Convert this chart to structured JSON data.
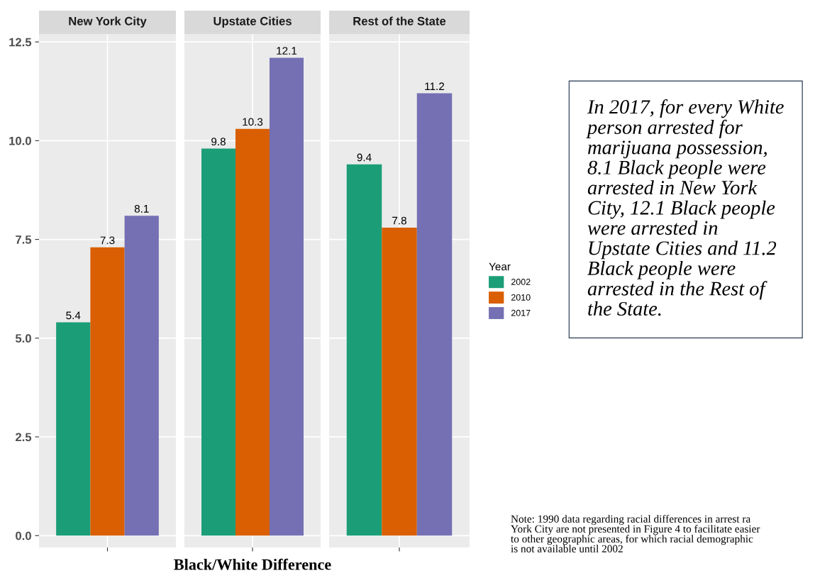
{
  "chart_data": {
    "type": "bar",
    "categories": [
      "New York City",
      "Upstate Cities",
      "Rest of the State"
    ],
    "xlabel": "Black/White Difference",
    "ylim": [
      -0.3,
      12.7
    ],
    "yticks": [
      {
        "value": 0,
        "label": "0.0"
      },
      {
        "value": 2.5,
        "label": "2.5"
      },
      {
        "value": 5,
        "label": "5.0"
      },
      {
        "value": 7.5,
        "label": "7.5"
      },
      {
        "value": 10,
        "label": "10.0"
      },
      {
        "value": 12.5,
        "label": "12.5"
      }
    ],
    "grid": true,
    "data_labels": true,
    "legend": "right",
    "legend_title": "Year",
    "series": [
      {
        "name": "2002",
        "color": "#1b9e77",
        "values": [
          5.4,
          9.8,
          9.4
        ]
      },
      {
        "name": "2010",
        "color": "#d95f02",
        "values": [
          7.3,
          10.3,
          7.8
        ]
      },
      {
        "name": "2017",
        "color": "#7570b3",
        "values": [
          8.1,
          12.1,
          11.2
        ]
      }
    ],
    "annotations": [
      "In 2017, for every White\nperson arrested for\nmarijuana possession,\n8.1 Black people were\narrested in New York\nCity, 12.1 Black people\nwere arrested in\nUpstate Cities and 11.2\nBlack people were\narrested in the Rest of\nthe State.",
      "Note: 1990 data regarding racial differences in arrest ra\nYork City are not presented in Figure 4 to facilitate easier\nto other geographic areas, for which racial demographic\nis not available until 2002"
    ]
  }
}
